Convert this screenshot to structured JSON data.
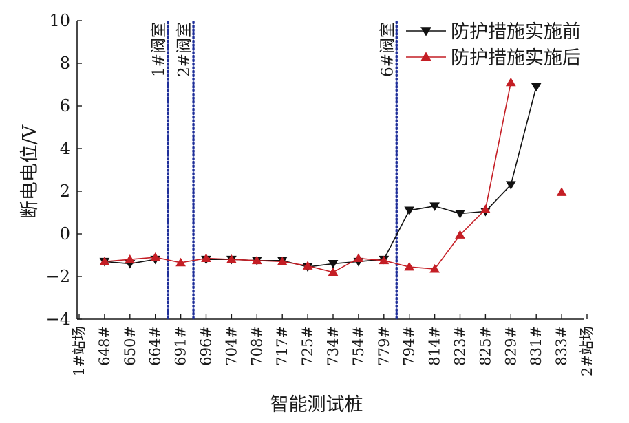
{
  "chart_data": {
    "type": "line",
    "xlabel": "智能测试桩",
    "ylabel": "断电电位/V",
    "ylim": [
      -4,
      10
    ],
    "yticks": [
      -4,
      -2,
      0,
      2,
      4,
      6,
      8,
      10
    ],
    "categories": [
      "1#站场",
      "648#",
      "650#",
      "664#",
      "691#",
      "696#",
      "704#",
      "708#",
      "717#",
      "725#",
      "734#",
      "754#",
      "779#",
      "794#",
      "814#",
      "823#",
      "825#",
      "829#",
      "831#",
      "833#",
      "2#站场"
    ],
    "series": [
      {
        "name": "防护措施实施前",
        "color": "#111111",
        "marker": "triangle-down",
        "values": [
          null,
          -1.3,
          -1.4,
          -1.2,
          null,
          -1.2,
          -1.2,
          -1.25,
          -1.25,
          -1.55,
          -1.4,
          -1.3,
          -1.2,
          1.1,
          1.3,
          0.95,
          1.05,
          2.3,
          6.9,
          null,
          null
        ]
      },
      {
        "name": "防护措施实施后",
        "color": "#c41e25",
        "marker": "triangle-up",
        "values": [
          null,
          -1.3,
          -1.2,
          -1.1,
          -1.35,
          -1.15,
          -1.2,
          -1.25,
          -1.3,
          -1.5,
          -1.8,
          -1.15,
          -1.25,
          -1.55,
          -1.65,
          -0.05,
          1.15,
          7.1,
          null,
          1.95,
          null
        ]
      }
    ],
    "annotations": [
      {
        "label": "1#阀室",
        "after_category_index": 3
      },
      {
        "label": "2#阀室",
        "after_category_index": 4
      },
      {
        "label": "6#阀室",
        "after_category_index": 12
      }
    ],
    "legend_position": "top-right",
    "grid": false
  }
}
